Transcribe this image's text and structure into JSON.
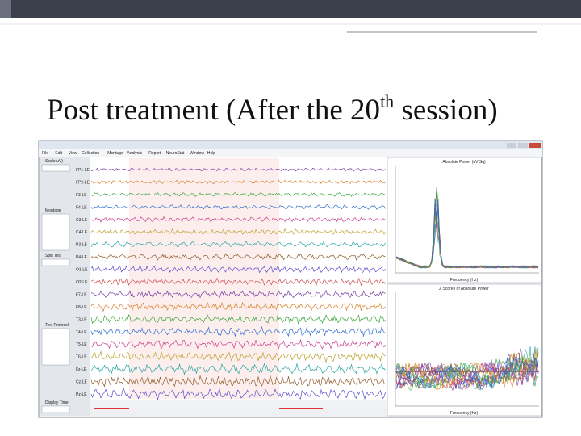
{
  "title": {
    "main": "Post treatment (After the 20",
    "superscript": "th",
    "end": " session)"
  },
  "screenshot": {
    "menu": [
      "File",
      "Edit",
      "View",
      "Collection",
      "Montage",
      "Analysis",
      "Report",
      "NeuroStat",
      "Window",
      "Help"
    ],
    "left_panel": [
      "Scale(uV)",
      "Montage",
      "Split Test",
      "Test Protocol",
      "Display Time"
    ],
    "channels": [
      "FP1-LE",
      "FP2-LE",
      "F3-LE",
      "F4-LE",
      "C3-LE",
      "C4-LE",
      "P3-LE",
      "P4-LE",
      "O1-LE",
      "O2-LE",
      "F7-LE",
      "F8-LE",
      "T3-LE",
      "T4-LE",
      "T5-LE",
      "T6-LE",
      "Fz-LE",
      "Cz-LE",
      "Pz-LE"
    ],
    "spectrum_panels": [
      {
        "title": "Absolute Power (uV Sq)",
        "xlabel": "Frequency (Hz)"
      },
      {
        "title": "Z Scores of Absolute Power",
        "xlabel": "Frequency (Hz)"
      }
    ]
  }
}
